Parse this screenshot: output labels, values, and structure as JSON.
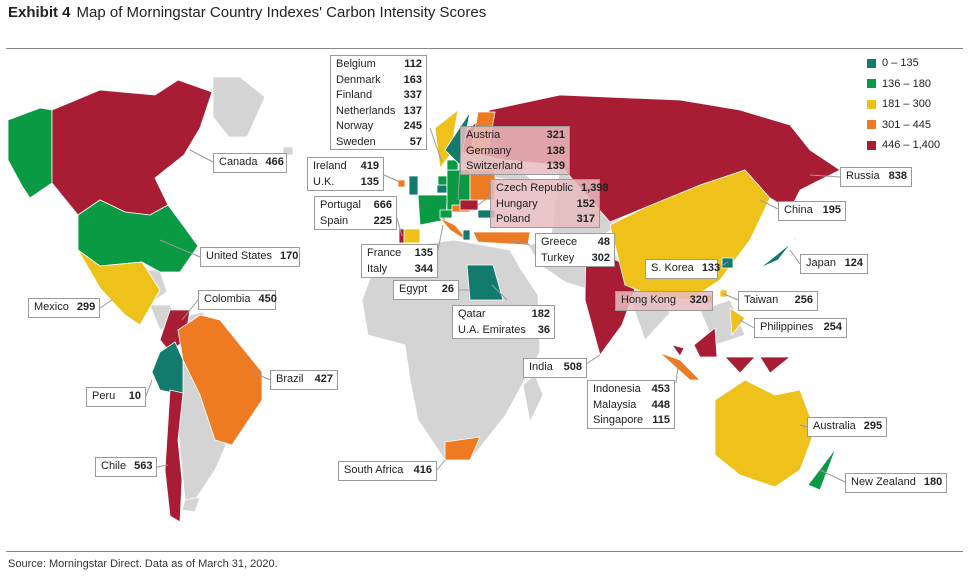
{
  "header": {
    "label": "Exhibit 4",
    "title": "Map of Morningstar Country Indexes' Carbon Intensity Scores"
  },
  "legend": [
    {
      "label": "0 – 135",
      "color": "#137a6e"
    },
    {
      "label": "136 – 180",
      "color": "#0a9a44"
    },
    {
      "label": "181 – 300",
      "color": "#eec21a"
    },
    {
      "label": "301 – 445",
      "color": "#ee7a22"
    },
    {
      "label": "446 – 1,400",
      "color": "#a81d34"
    }
  ],
  "groups": {
    "nordic": [
      {
        "name": "Belgium",
        "value": "112"
      },
      {
        "name": "Denmark",
        "value": "163"
      },
      {
        "name": "Finland",
        "value": "337"
      },
      {
        "name": "Netherlands",
        "value": "137"
      },
      {
        "name": "Norway",
        "value": "245"
      },
      {
        "name": "Sweden",
        "value": "57"
      }
    ],
    "central": [
      {
        "name": "Austria",
        "value": "321"
      },
      {
        "name": "Germany",
        "value": "138"
      },
      {
        "name": "Switzerland",
        "value": "139"
      }
    ],
    "isles": [
      {
        "name": "Ireland",
        "value": "419"
      },
      {
        "name": "U.K.",
        "value": "135"
      }
    ],
    "iberia": [
      {
        "name": "Portugal",
        "value": "666"
      },
      {
        "name": "Spain",
        "value": "225"
      }
    ],
    "east": [
      {
        "name": "Czech Republic",
        "value": "1,398"
      },
      {
        "name": "Hungary",
        "value": "152"
      },
      {
        "name": "Poland",
        "value": "317"
      }
    ],
    "greece": [
      {
        "name": "Greece",
        "value": "48"
      },
      {
        "name": "Turkey",
        "value": "302"
      }
    ],
    "franceitaly": [
      {
        "name": "France",
        "value": "135"
      },
      {
        "name": "Italy",
        "value": "344"
      }
    ],
    "gulf": [
      {
        "name": "Qatar",
        "value": "182"
      },
      {
        "name": "U.A. Emirates",
        "value": "36"
      }
    ],
    "asean": [
      {
        "name": "Indonesia",
        "value": "453"
      },
      {
        "name": "Malaysia",
        "value": "448"
      },
      {
        "name": "Singapore",
        "value": "115"
      }
    ]
  },
  "singles": {
    "canada": {
      "name": "Canada",
      "value": "466"
    },
    "us": {
      "name": "United States",
      "value": "170"
    },
    "mexico": {
      "name": "Mexico",
      "value": "299"
    },
    "colombia": {
      "name": "Colombia",
      "value": "450"
    },
    "brazil": {
      "name": "Brazil",
      "value": "427"
    },
    "peru": {
      "name": "Peru",
      "value": "10"
    },
    "chile": {
      "name": "Chile",
      "value": "563"
    },
    "safrica": {
      "name": "South Africa",
      "value": "416"
    },
    "egypt": {
      "name": "Egypt",
      "value": "26"
    },
    "india": {
      "name": "India",
      "value": "508"
    },
    "russia": {
      "name": "Russia",
      "value": "838"
    },
    "china": {
      "name": "China",
      "value": "195"
    },
    "japan": {
      "name": "Japan",
      "value": "124"
    },
    "skorea": {
      "name": "S. Korea",
      "value": "133"
    },
    "hongkong": {
      "name": "Hong Kong",
      "value": "320"
    },
    "taiwan": {
      "name": "Taiwan",
      "value": "256"
    },
    "philippines": {
      "name": "Philippines",
      "value": "254"
    },
    "australia": {
      "name": "Australia",
      "value": "295"
    },
    "nz": {
      "name": "New Zealand",
      "value": "180"
    }
  },
  "source": "Source: Morningstar Direct. Data as of March 31, 2020."
}
